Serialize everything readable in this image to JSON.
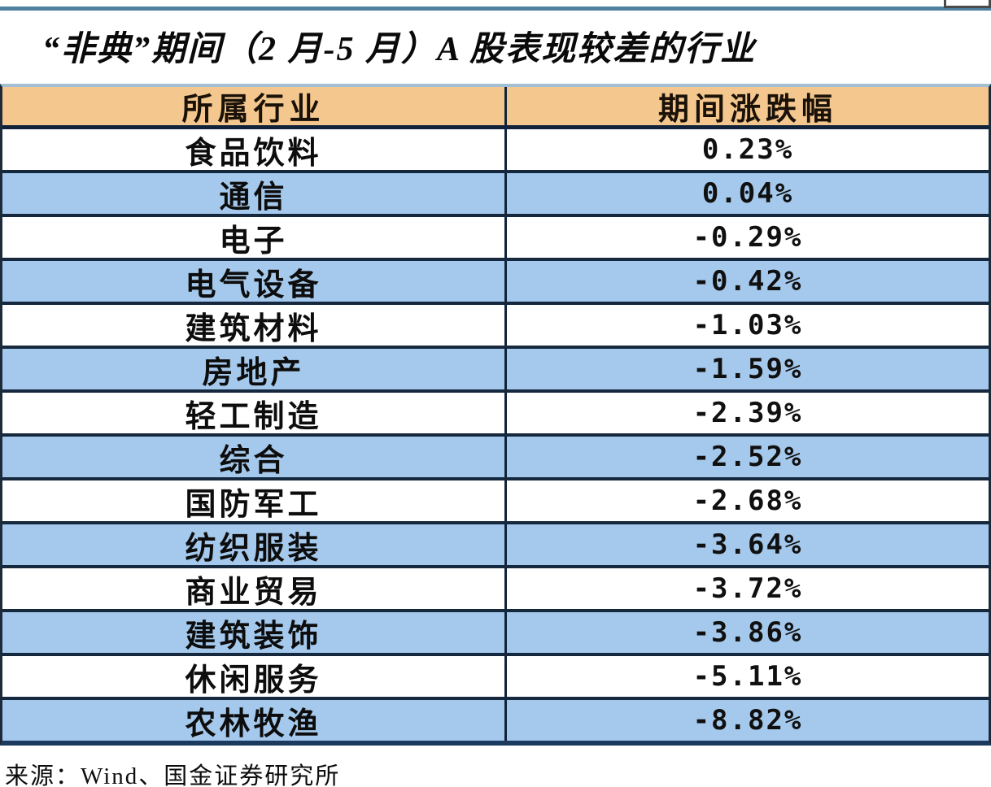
{
  "chart_data": {
    "type": "table",
    "title": "“非典”期间（2 月-5 月）A 股表现较差的行业",
    "columns": [
      "所属行业",
      "期间涨跌幅"
    ],
    "rows": [
      [
        "食品饮料",
        "0.23%"
      ],
      [
        "通信",
        "0.04%"
      ],
      [
        "电子",
        "-0.29%"
      ],
      [
        "电气设备",
        "-0.42%"
      ],
      [
        "建筑材料",
        "-1.03%"
      ],
      [
        "房地产",
        "-1.59%"
      ],
      [
        "轻工制造",
        "-2.39%"
      ],
      [
        "综合",
        "-2.52%"
      ],
      [
        "国防军工",
        "-2.68%"
      ],
      [
        "纺织服装",
        "-3.64%"
      ],
      [
        "商业贸易",
        "-3.72%"
      ],
      [
        "建筑装饰",
        "-3.86%"
      ],
      [
        "休闲服务",
        "-5.11%"
      ],
      [
        "农林牧渔",
        "-8.82%"
      ]
    ],
    "values_pct": [
      0.23,
      0.04,
      -0.29,
      -0.42,
      -1.03,
      -1.59,
      -2.39,
      -2.52,
      -2.68,
      -3.64,
      -3.72,
      -3.86,
      -5.11,
      -8.82
    ],
    "source": "来源：Wind、国金证券研究所",
    "layout": {
      "header_position": "top",
      "row_alternate_shading": true,
      "column_alignment": [
        "center",
        "center"
      ]
    }
  },
  "colors": {
    "header_bg": "#F4C78E",
    "alt_row_bg": "#A5C9EC",
    "grid_line": "#10233B",
    "table_bottom_border": "#1C3A5E",
    "top_rule": "#4F80A0",
    "header_top_rule": "#A3BFD3",
    "text": "#0d0d0d"
  }
}
